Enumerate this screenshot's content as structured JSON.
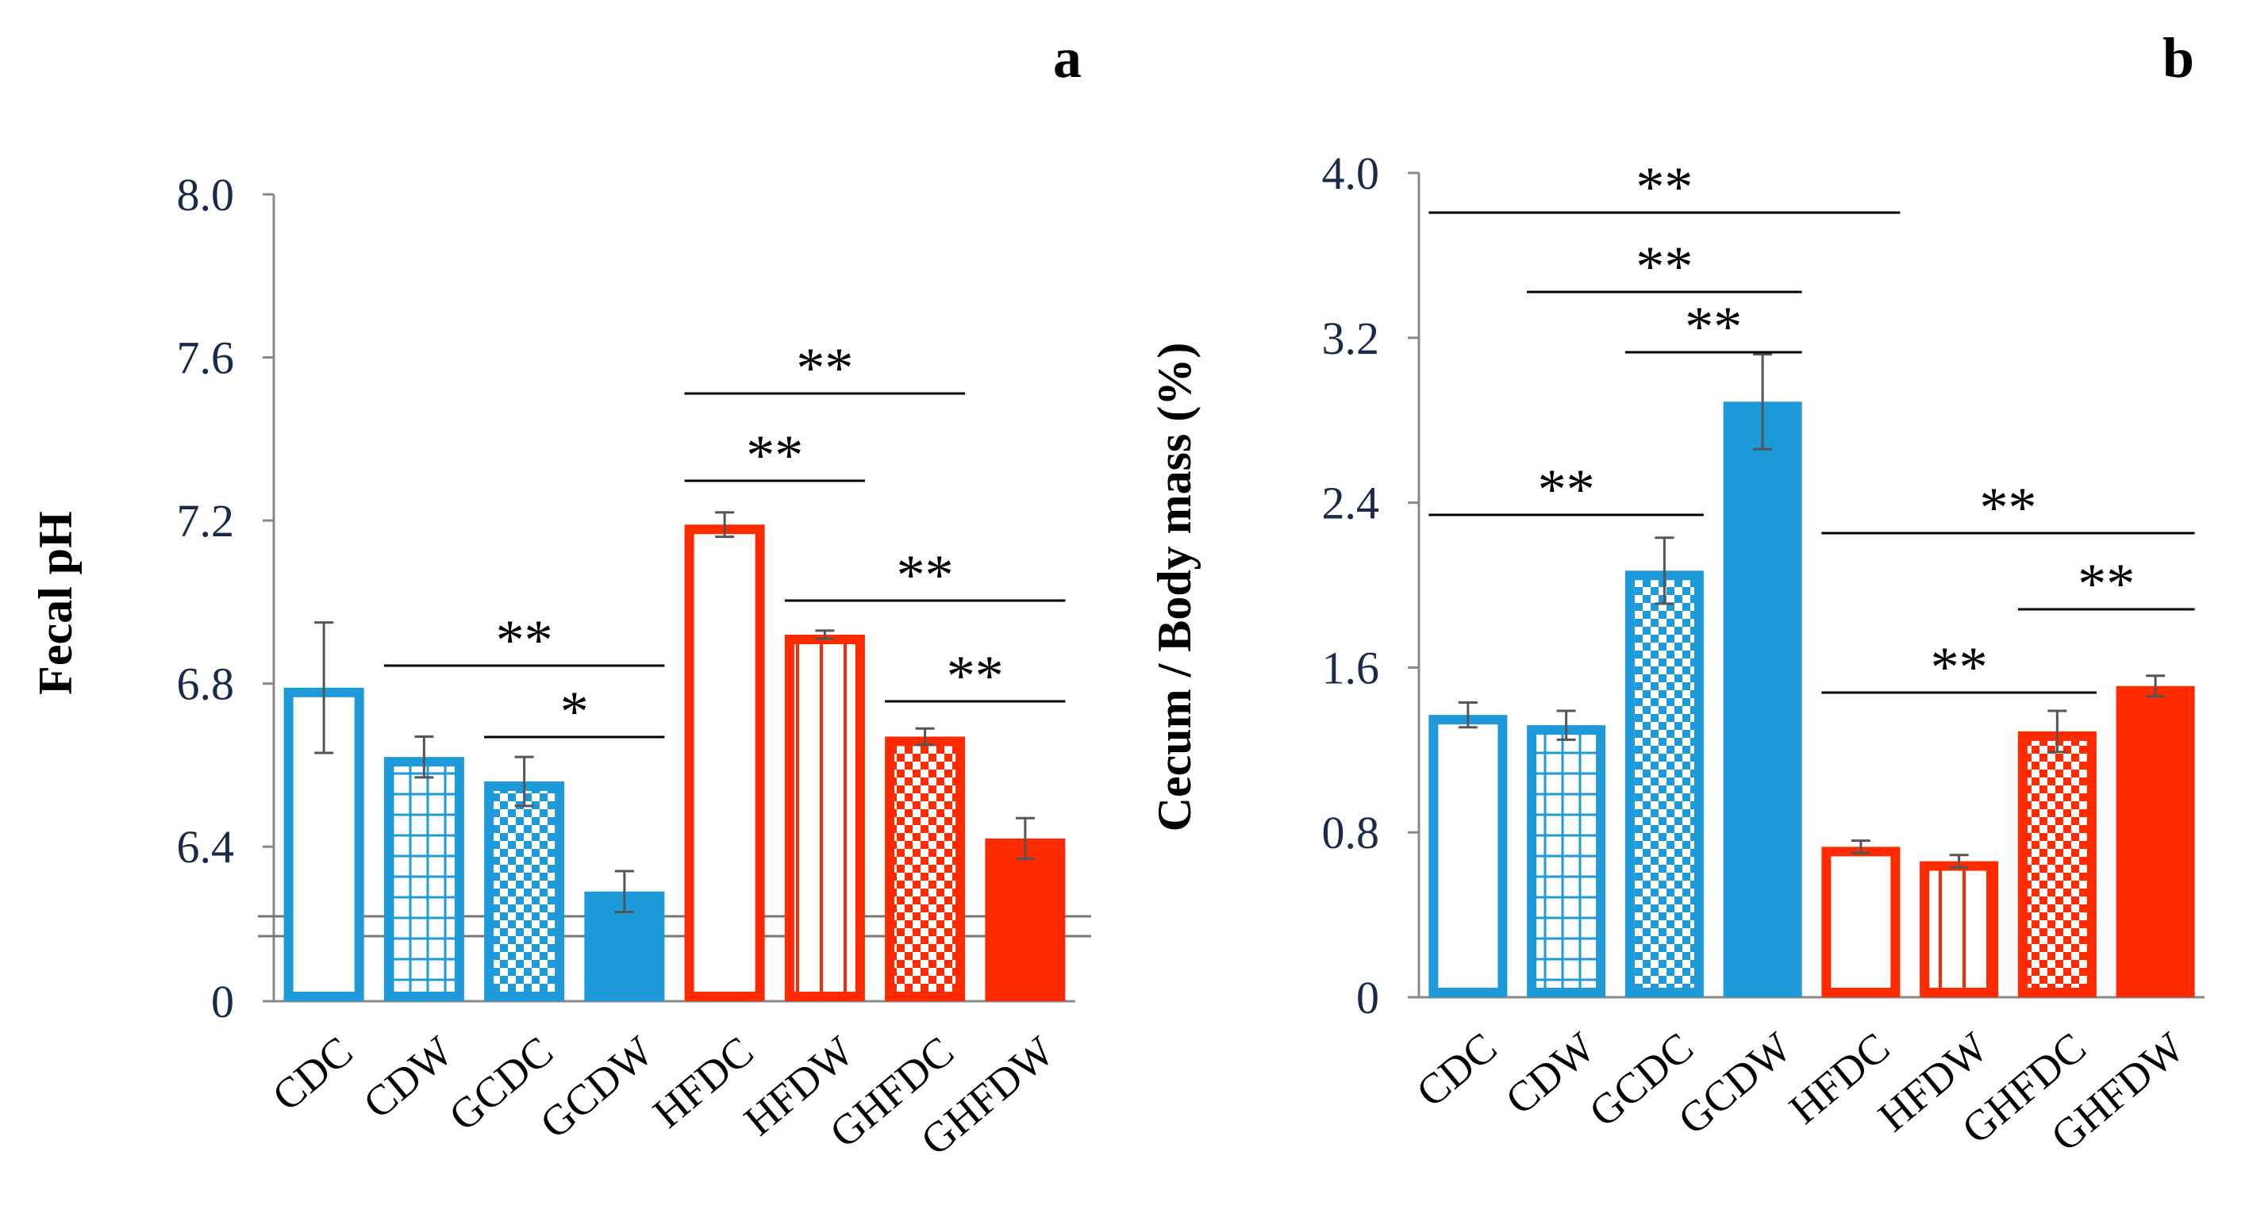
{
  "chart_data": [
    {
      "type": "bar",
      "panel_label": "a",
      "ylabel": "Fecal pH",
      "axis_break": true,
      "ylim": [
        6.2,
        8.0
      ],
      "yticks": [
        "8.0",
        "7.6",
        "7.2",
        "6.8",
        "6.4",
        "0"
      ],
      "categories": [
        "CDC",
        "CDW",
        "GCDC",
        "GCDW",
        "HFDC",
        "HFDW",
        "GHFDC",
        "GHFDW"
      ],
      "values": [
        6.79,
        6.62,
        6.56,
        6.29,
        7.19,
        6.92,
        6.67,
        6.42
      ],
      "errors": [
        0.16,
        0.05,
        0.06,
        0.05,
        0.03,
        0.01,
        0.02,
        0.05
      ],
      "groups": [
        "control",
        "control",
        "control",
        "control",
        "high-fat",
        "high-fat",
        "high-fat",
        "high-fat"
      ],
      "patterns": [
        "open",
        "grid",
        "checker",
        "solid",
        "open",
        "vertical",
        "checker",
        "solid"
      ],
      "significance": [
        {
          "from": 4,
          "to": 6,
          "label": "**"
        },
        {
          "from": 4,
          "to": 5,
          "label": "**"
        },
        {
          "from": 5,
          "to": 7,
          "label": "**"
        },
        {
          "from": 1,
          "to": 3,
          "label": "**"
        },
        {
          "from": 6,
          "to": 7,
          "label": "**"
        },
        {
          "from": 2,
          "to": 3,
          "label": "*"
        }
      ]
    },
    {
      "type": "bar",
      "panel_label": "b",
      "ylabel": "Cecum / Body mass (%)",
      "ylim": [
        0,
        4.0
      ],
      "yticks": [
        "4.0",
        "3.2",
        "2.4",
        "1.6",
        "0.8",
        "0"
      ],
      "categories": [
        "CDC",
        "CDW",
        "GCDC",
        "GCDW",
        "HFDC",
        "HFDW",
        "GHFDC",
        "GHFDW"
      ],
      "values": [
        1.37,
        1.32,
        2.07,
        2.89,
        0.73,
        0.66,
        1.29,
        1.51
      ],
      "errors": [
        0.06,
        0.07,
        0.16,
        0.23,
        0.03,
        0.03,
        0.1,
        0.05
      ],
      "groups": [
        "control",
        "control",
        "control",
        "control",
        "high-fat",
        "high-fat",
        "high-fat",
        "high-fat"
      ],
      "patterns": [
        "open",
        "grid",
        "checker",
        "solid",
        "open",
        "vertical",
        "checker",
        "solid"
      ],
      "significance": [
        {
          "from": 0,
          "to": 4,
          "label": "**"
        },
        {
          "from": 1,
          "to": 3,
          "label": "**"
        },
        {
          "from": 2,
          "to": 3,
          "label": "**"
        },
        {
          "from": 0,
          "to": 2,
          "label": "**"
        },
        {
          "from": 4,
          "to": 7,
          "label": "**"
        },
        {
          "from": 6,
          "to": 7,
          "label": "**"
        },
        {
          "from": 4,
          "to": 6,
          "label": "**"
        }
      ]
    }
  ],
  "colors": {
    "control": "#1E9ADB",
    "high_fat": "#FF2A00",
    "axis": "#888888",
    "text": "#1a2a4a"
  }
}
